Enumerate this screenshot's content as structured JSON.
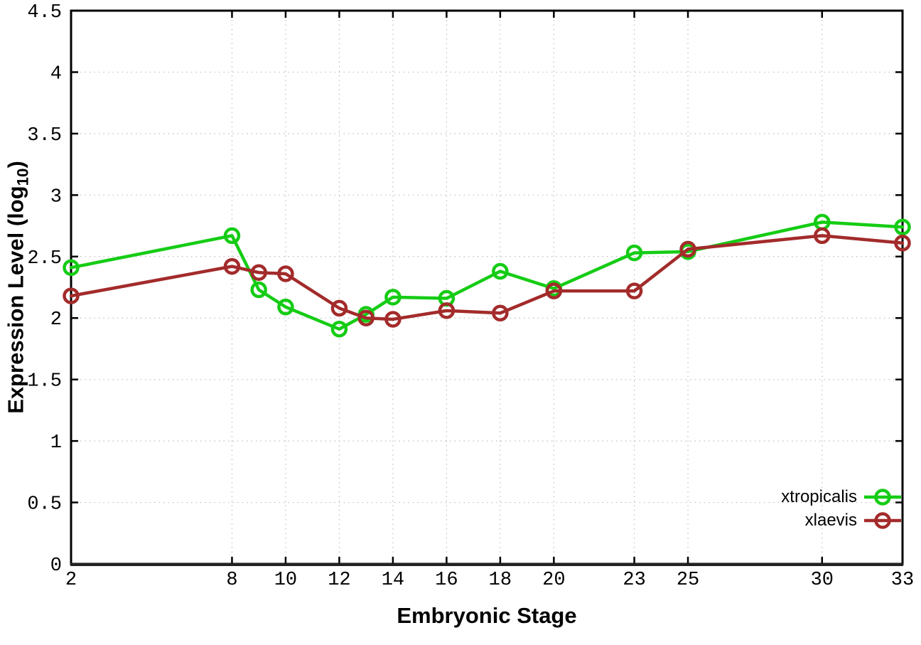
{
  "figure": {
    "background": "#ffffff"
  },
  "colors": {
    "grid": "#bdbdbd",
    "axis": "#000000",
    "text": "#000000",
    "xtropicalis": "#15cc15",
    "xlaevis": "#a32b2b"
  },
  "chart_data": {
    "type": "line",
    "title": "",
    "xlabel": "Embryonic Stage",
    "ylabel": "Expression Level (log10)",
    "ylabel_parts": {
      "prefix": "Expression Level (log",
      "sub": "10",
      "suffix": ")"
    },
    "x": [
      2,
      8,
      9,
      10,
      12,
      13,
      14,
      16,
      18,
      20,
      23,
      25,
      30,
      33
    ],
    "series": [
      {
        "name": "xtropicalis",
        "color": "#15cc15",
        "marker": "open-circle",
        "values": [
          2.41,
          2.67,
          2.23,
          2.09,
          1.91,
          2.03,
          2.17,
          2.16,
          2.38,
          2.24,
          2.53,
          2.54,
          2.78,
          2.74
        ]
      },
      {
        "name": "xlaevis",
        "color": "#a32b2b",
        "marker": "open-circle",
        "values": [
          2.18,
          2.42,
          2.37,
          2.36,
          2.08,
          2.0,
          1.99,
          2.06,
          2.04,
          2.22,
          2.22,
          2.56,
          2.67,
          2.61
        ]
      }
    ],
    "xlim": [
      2,
      33
    ],
    "ylim": [
      0,
      4.5
    ],
    "xticks": [
      2,
      8,
      10,
      12,
      14,
      16,
      18,
      20,
      23,
      25,
      30,
      33
    ],
    "xtick_labels": [
      "2",
      "8",
      "10",
      "12",
      "14",
      "16",
      "18",
      "20",
      "23",
      "25",
      "30",
      "33"
    ],
    "yticks": [
      0,
      0.5,
      1,
      1.5,
      2,
      2.5,
      3,
      3.5,
      4,
      4.5
    ],
    "ytick_labels": [
      "0",
      "0.5",
      "1",
      "1.5",
      "2",
      "2.5",
      "3",
      "3.5",
      "4",
      "4.5"
    ],
    "grid": true,
    "grid_style": "dotted",
    "legend_position": "bottom-right"
  }
}
